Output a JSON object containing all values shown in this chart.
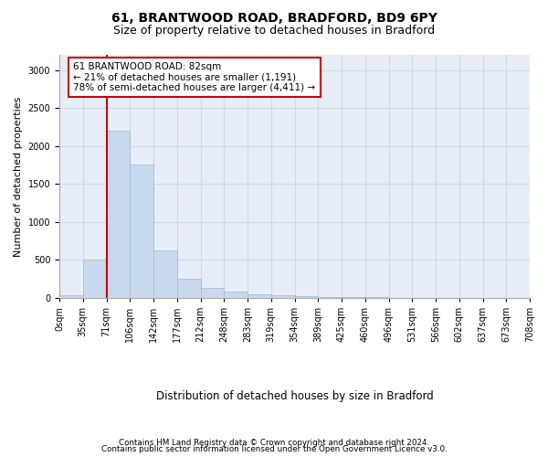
{
  "title1": "61, BRANTWOOD ROAD, BRADFORD, BD9 6PY",
  "title2": "Size of property relative to detached houses in Bradford",
  "xlabel": "Distribution of detached houses by size in Bradford",
  "ylabel": "Number of detached properties",
  "bar_color": "#c8d8ee",
  "bar_edge_color": "#a0b8d8",
  "grid_color": "#d0d8e8",
  "background_color": "#e8eef8",
  "annotation_line_color": "#cc0000",
  "annotation_box_color": "#ffffff",
  "annotation_box_edge": "#cc0000",
  "annotation_text": "61 BRANTWOOD ROAD: 82sqm\n← 21% of detached houses are smaller (1,191)\n78% of semi-detached houses are larger (4,411) →",
  "footer1": "Contains HM Land Registry data © Crown copyright and database right 2024.",
  "footer2": "Contains public sector information licensed under the Open Government Licence v3.0.",
  "bin_labels": [
    "0sqm",
    "35sqm",
    "71sqm",
    "106sqm",
    "142sqm",
    "177sqm",
    "212sqm",
    "248sqm",
    "283sqm",
    "319sqm",
    "354sqm",
    "389sqm",
    "425sqm",
    "460sqm",
    "496sqm",
    "531sqm",
    "566sqm",
    "602sqm",
    "637sqm",
    "673sqm",
    "708sqm"
  ],
  "values": [
    30,
    500,
    2200,
    1750,
    625,
    250,
    125,
    80,
    50,
    35,
    20,
    15,
    8,
    5,
    3,
    2,
    2,
    1,
    1,
    1
  ],
  "ylim": [
    0,
    3200
  ],
  "yticks": [
    0,
    500,
    1000,
    1500,
    2000,
    2500,
    3000
  ],
  "vline_bin_index": 2
}
